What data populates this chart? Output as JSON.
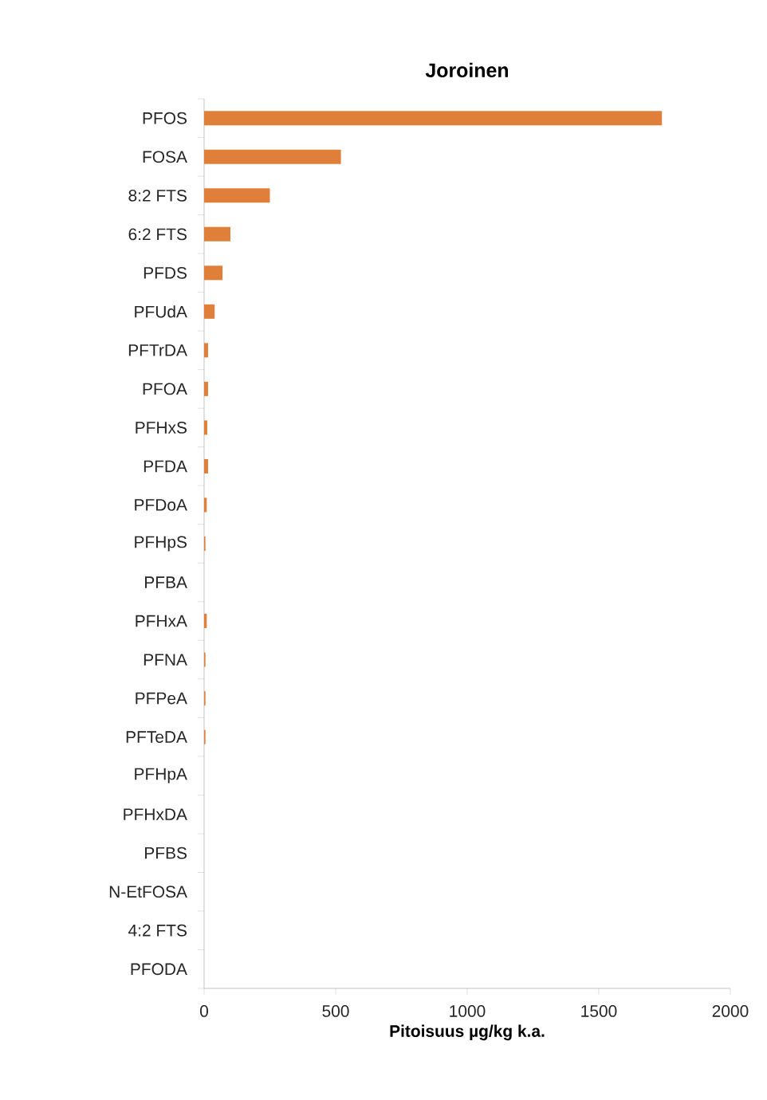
{
  "chart_data": {
    "type": "bar",
    "orientation": "horizontal",
    "title": "Joroinen",
    "xlabel": "Pitoisuus µg/kg k.a.",
    "categories": [
      "PFOS",
      "FOSA",
      "8:2 FTS",
      "6:2 FTS",
      "PFDS",
      "PFUdA",
      "PFTrDA",
      "PFOA",
      "PFHxS",
      "PFDA",
      "PFDoA",
      "PFHpS",
      "PFBA",
      "PFHxA",
      "PFNA",
      "PFPeA",
      "PFTeDA",
      "PFHpA",
      "PFHxDA",
      "PFBS",
      "N-EtFOSA",
      "4:2 FTS",
      "PFODA"
    ],
    "values": [
      1740,
      520,
      250,
      100,
      70,
      40,
      15,
      15,
      12,
      15,
      10,
      5,
      0,
      10,
      5,
      5,
      5,
      0,
      0,
      0,
      0,
      0,
      0
    ],
    "color": "#e07f3a",
    "xlim": [
      0,
      2000
    ],
    "xticks": [
      0,
      500,
      1000,
      1500,
      2000
    ],
    "grid": false
  }
}
